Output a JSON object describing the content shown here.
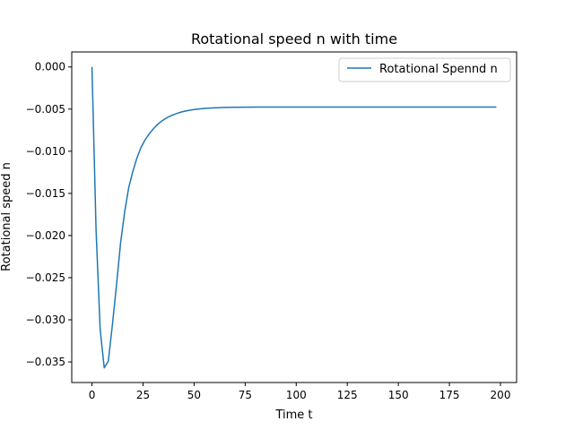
{
  "chart_data": {
    "type": "line",
    "title": "Rotational speed n with time",
    "xlabel": "Time t",
    "ylabel": "Rotational speed n",
    "xlim": [
      -9.9,
      207.9
    ],
    "ylim": [
      -0.03744,
      0.00178
    ],
    "xticks": [
      0,
      25,
      50,
      75,
      100,
      125,
      150,
      175,
      200
    ],
    "xtick_labels": [
      "0",
      "25",
      "50",
      "75",
      "100",
      "125",
      "150",
      "175",
      "200"
    ],
    "yticks": [
      0.0,
      -0.005,
      -0.01,
      -0.015,
      -0.02,
      -0.025,
      -0.03,
      -0.035
    ],
    "ytick_labels": [
      "0.000",
      "−0.005",
      "−0.010",
      "−0.015",
      "−0.020",
      "−0.025",
      "−0.030",
      "−0.035"
    ],
    "grid": false,
    "legend_position": "top-right",
    "series": [
      {
        "name": "Rotational Spennd n",
        "color": "#1f77b4",
        "x": [
          0,
          2,
          4,
          6,
          8,
          10,
          12,
          14,
          16,
          18,
          20,
          22,
          24,
          26,
          28,
          30,
          32,
          34,
          36,
          38,
          40,
          42,
          44,
          46,
          48,
          50,
          52,
          54,
          56,
          58,
          60,
          62,
          64,
          66,
          68,
          70,
          72,
          74,
          76,
          78,
          80,
          82,
          84,
          86,
          88,
          90,
          92,
          94,
          96,
          98,
          100,
          102,
          104,
          106,
          108,
          110,
          112,
          114,
          116,
          118,
          120,
          122,
          124,
          126,
          128,
          130,
          132,
          134,
          136,
          138,
          140,
          142,
          144,
          146,
          148,
          150,
          152,
          154,
          156,
          158,
          160,
          162,
          164,
          166,
          168,
          170,
          172,
          174,
          176,
          178,
          180,
          182,
          184,
          186,
          188,
          190,
          192,
          194,
          196,
          198
        ],
        "y": [
          0.0,
          -0.0193,
          -0.0311,
          -0.0357,
          -0.0349,
          -0.0306,
          -0.0259,
          -0.0209,
          -0.0172,
          -0.0143,
          -0.0124,
          -0.0108,
          -0.00955,
          -0.00865,
          -0.00795,
          -0.00735,
          -0.00685,
          -0.00645,
          -0.00612,
          -0.00586,
          -0.00565,
          -0.00548,
          -0.00533,
          -0.00522,
          -0.00513,
          -0.00505,
          -0.00499,
          -0.00494,
          -0.0049,
          -0.00487,
          -0.00485,
          -0.00483,
          -0.00481,
          -0.0048,
          -0.00479,
          -0.00478,
          -0.00478,
          -0.00477,
          -0.00477,
          -0.00477,
          -0.00476,
          -0.00476,
          -0.00476,
          -0.00476,
          -0.00476,
          -0.00476,
          -0.00476,
          -0.00476,
          -0.00476,
          -0.00476,
          -0.00476,
          -0.00476,
          -0.00476,
          -0.00476,
          -0.00476,
          -0.00476,
          -0.00476,
          -0.00476,
          -0.00476,
          -0.00476,
          -0.00476,
          -0.00476,
          -0.00476,
          -0.00476,
          -0.00476,
          -0.00476,
          -0.00476,
          -0.00476,
          -0.00476,
          -0.00476,
          -0.00476,
          -0.00476,
          -0.00476,
          -0.00476,
          -0.00476,
          -0.00476,
          -0.00476,
          -0.00476,
          -0.00476,
          -0.00476,
          -0.00476,
          -0.00476,
          -0.00476,
          -0.00476,
          -0.00476,
          -0.00476,
          -0.00476,
          -0.00476,
          -0.00476,
          -0.00476,
          -0.00476,
          -0.00476,
          -0.00476,
          -0.00476,
          -0.00476,
          -0.00476,
          -0.00476,
          -0.00476,
          -0.00476,
          -0.00476
        ]
      }
    ]
  }
}
